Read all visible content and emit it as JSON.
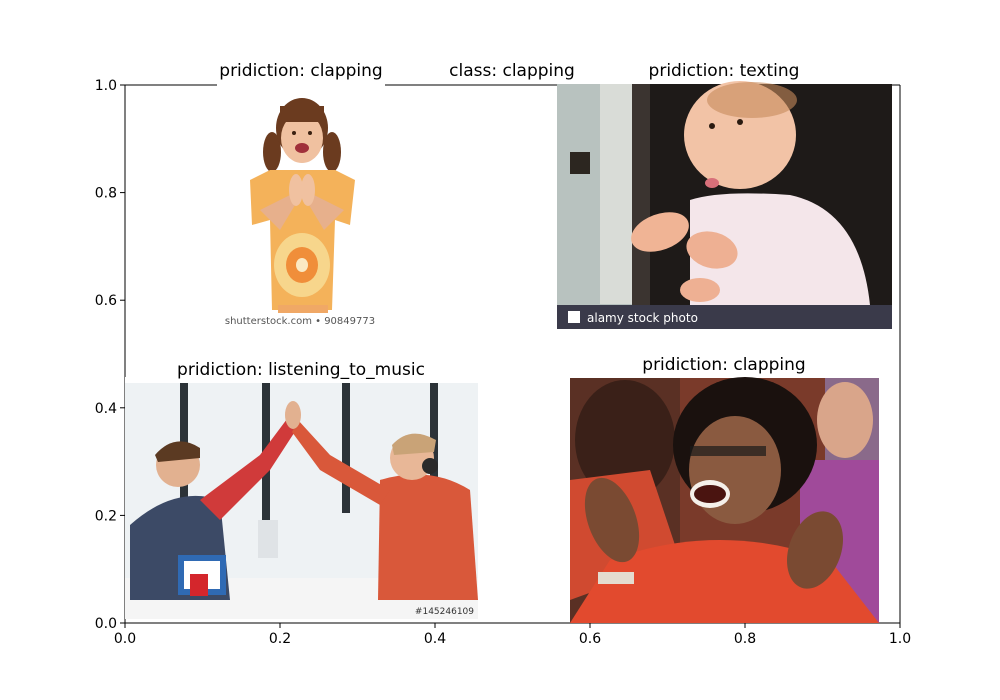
{
  "chart_data": {
    "type": "image_grid",
    "main_title": "class: clapping",
    "xlim": [
      0,
      1
    ],
    "ylim": [
      0,
      1
    ],
    "xticks": [
      "0.0",
      "0.2",
      "0.4",
      "0.6",
      "0.8",
      "1.0"
    ],
    "yticks": [
      "0.0",
      "0.2",
      "0.4",
      "0.6",
      "0.8",
      "1.0"
    ],
    "xtick_values": [
      0,
      0.2,
      0.4,
      0.6,
      0.8,
      1.0
    ],
    "ytick_values": [
      0,
      0.2,
      0.4,
      0.6,
      0.8,
      1.0
    ],
    "panels": [
      {
        "title": "pridiction: clapping",
        "description": "girl in tie-dye shirt clapping",
        "watermark": "shutterstock.com • 90849773"
      },
      {
        "title": "pridiction: texting",
        "description": "baby clapping",
        "watermark": "alamy stock photo"
      },
      {
        "title": "pridiction: listening_to_music",
        "description": "two men high-fiving at desk",
        "watermark": "#145246109"
      },
      {
        "title": "pridiction: clapping",
        "description": "woman in red clapping in audience"
      }
    ]
  }
}
